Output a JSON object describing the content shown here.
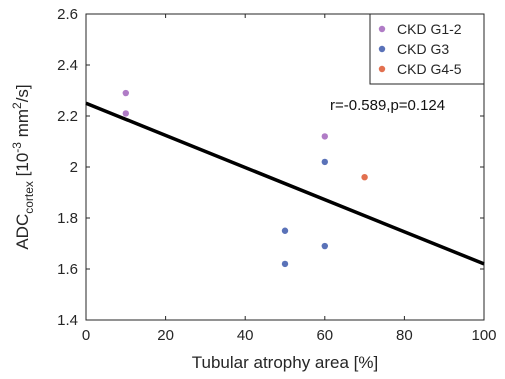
{
  "chart_data": {
    "type": "scatter",
    "xlabel": "Tubular atrophy area [%]",
    "ylabel": {
      "base": "ADC",
      "subscript": "cortex",
      "unit_prefix": " [10",
      "exp1": "-3",
      "unit_mid": " mm",
      "exp2": "2",
      "unit_suffix": "/s]"
    },
    "xlim": [
      0,
      100
    ],
    "ylim": [
      1.4,
      2.6
    ],
    "xticks": [
      0,
      20,
      40,
      60,
      80,
      100
    ],
    "yticks": [
      1.4,
      1.6,
      1.8,
      2.0,
      2.2,
      2.4,
      2.6
    ],
    "xtick_labels": [
      "0",
      "20",
      "40",
      "60",
      "80",
      "100"
    ],
    "ytick_labels": [
      "1.4",
      "1.6",
      "1.8",
      "2",
      "2.2",
      "2.4",
      "2.6"
    ],
    "grid": false,
    "legend_position": "top-right",
    "series": [
      {
        "name": "CKD G1-2",
        "color": "#b07cc6",
        "x": [
          10,
          10,
          60
        ],
        "y": [
          2.29,
          2.21,
          2.12
        ]
      },
      {
        "name": "CKD G3",
        "color": "#5a72b8",
        "x": [
          60,
          50,
          50,
          60
        ],
        "y": [
          2.02,
          1.75,
          1.62,
          1.69
        ]
      },
      {
        "name": "CKD G4-5",
        "color": "#e2704f",
        "x": [
          70
        ],
        "y": [
          1.96
        ]
      }
    ],
    "regression_line": {
      "color": "#000000",
      "x": [
        0,
        100
      ],
      "y": [
        2.25,
        1.62
      ]
    },
    "annotation": "r=-0.589,p=0.124"
  }
}
